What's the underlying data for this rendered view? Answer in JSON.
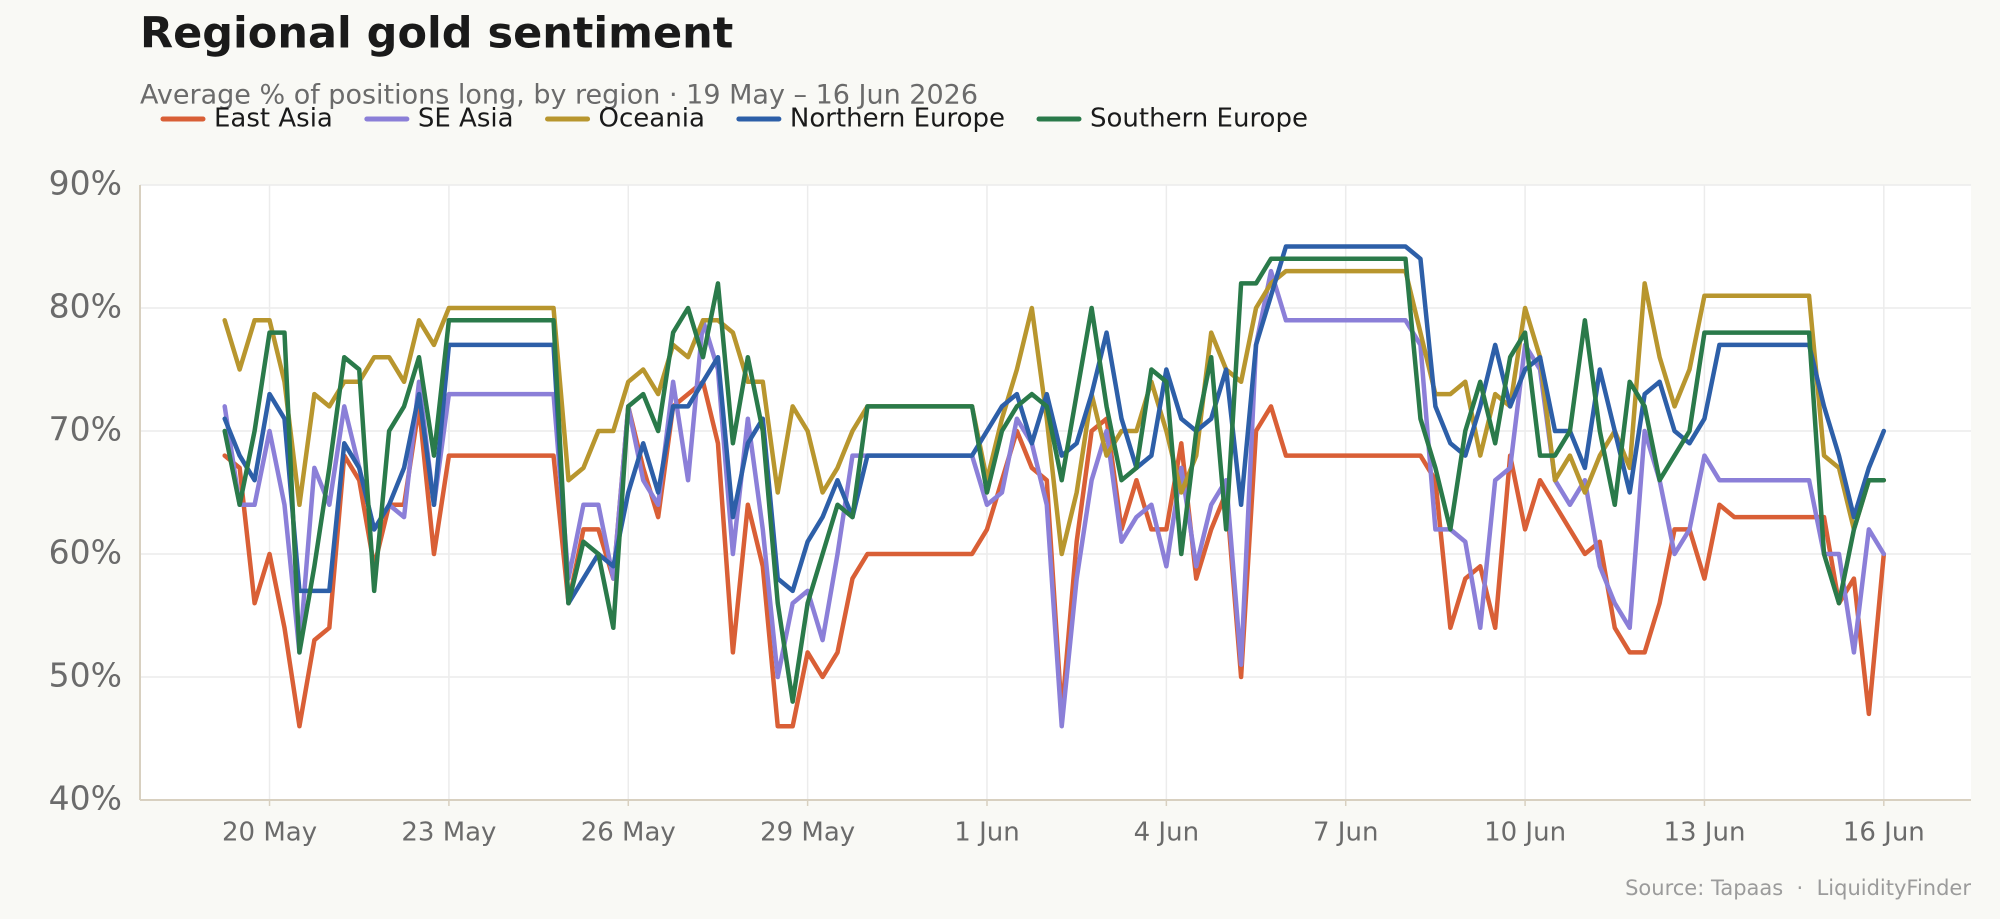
{
  "chart_data": {
    "type": "line",
    "title": "Regional gold sentiment",
    "subtitle": "Average % of positions long, by region · 19 May – 16 Jun 2026",
    "source": "Source: Tapaas  ·  LiquidityFinder",
    "legend": "top-left",
    "grid": true,
    "x": [
      "2026-05-19T06:00",
      "2026-05-19T12:00",
      "2026-05-19T18:00",
      "2026-05-20T00:00",
      "2026-05-20T06:00",
      "2026-05-20T12:00",
      "2026-05-20T18:00",
      "2026-05-21T00:00",
      "2026-05-21T06:00",
      "2026-05-21T12:00",
      "2026-05-21T18:00",
      "2026-05-22T00:00",
      "2026-05-22T06:00",
      "2026-05-22T12:00",
      "2026-05-22T18:00",
      "2026-05-23T00:00",
      "2026-05-23T06:00",
      "2026-05-23T12:00",
      "2026-05-23T18:00",
      "2026-05-24T00:00",
      "2026-05-24T06:00",
      "2026-05-24T12:00",
      "2026-05-24T18:00",
      "2026-05-25T00:00",
      "2026-05-25T06:00",
      "2026-05-25T12:00",
      "2026-05-25T18:00",
      "2026-05-26T00:00",
      "2026-05-26T06:00",
      "2026-05-26T12:00",
      "2026-05-26T18:00",
      "2026-05-27T00:00",
      "2026-05-27T06:00",
      "2026-05-27T12:00",
      "2026-05-27T18:00",
      "2026-05-28T00:00",
      "2026-05-28T06:00",
      "2026-05-28T12:00",
      "2026-05-28T18:00",
      "2026-05-29T00:00",
      "2026-05-29T06:00",
      "2026-05-29T12:00",
      "2026-05-29T18:00",
      "2026-05-30T00:00",
      "2026-05-30T06:00",
      "2026-05-30T12:00",
      "2026-05-30T18:00",
      "2026-05-31T00:00",
      "2026-05-31T06:00",
      "2026-05-31T12:00",
      "2026-05-31T18:00",
      "2026-06-01T00:00",
      "2026-06-01T06:00",
      "2026-06-01T12:00",
      "2026-06-01T18:00",
      "2026-06-02T00:00",
      "2026-06-02T06:00",
      "2026-06-02T12:00",
      "2026-06-02T18:00",
      "2026-06-03T00:00",
      "2026-06-03T06:00",
      "2026-06-03T12:00",
      "2026-06-03T18:00",
      "2026-06-04T00:00",
      "2026-06-04T06:00",
      "2026-06-04T12:00",
      "2026-06-04T18:00",
      "2026-06-05T00:00",
      "2026-06-05T06:00",
      "2026-06-05T12:00",
      "2026-06-05T18:00",
      "2026-06-06T00:00",
      "2026-06-06T06:00",
      "2026-06-06T12:00",
      "2026-06-06T18:00",
      "2026-06-07T00:00",
      "2026-06-07T06:00",
      "2026-06-07T12:00",
      "2026-06-07T18:00",
      "2026-06-08T00:00",
      "2026-06-08T06:00",
      "2026-06-08T12:00",
      "2026-06-08T18:00",
      "2026-06-09T00:00",
      "2026-06-09T06:00",
      "2026-06-09T12:00",
      "2026-06-09T18:00",
      "2026-06-10T00:00",
      "2026-06-10T06:00",
      "2026-06-10T12:00",
      "2026-06-10T18:00",
      "2026-06-11T00:00",
      "2026-06-11T06:00",
      "2026-06-11T12:00",
      "2026-06-11T18:00",
      "2026-06-12T00:00",
      "2026-06-12T06:00",
      "2026-06-12T12:00",
      "2026-06-12T18:00",
      "2026-06-13T00:00",
      "2026-06-13T06:00",
      "2026-06-13T12:00",
      "2026-06-13T18:00",
      "2026-06-14T00:00",
      "2026-06-14T06:00",
      "2026-06-14T12:00",
      "2026-06-14T18:00",
      "2026-06-15T00:00",
      "2026-06-15T06:00",
      "2026-06-15T12:00",
      "2026-06-15T18:00",
      "2026-06-16T00:00"
    ],
    "xlim": [
      "2026-05-17T20:00",
      "2026-06-17T11:00"
    ],
    "xticks": [
      {
        "value": "2026-05-20T00:00",
        "label": "20 May"
      },
      {
        "value": "2026-05-23T00:00",
        "label": "23 May"
      },
      {
        "value": "2026-05-26T00:00",
        "label": "26 May"
      },
      {
        "value": "2026-05-29T00:00",
        "label": "29 May"
      },
      {
        "value": "2026-06-01T00:00",
        "label": "1 Jun"
      },
      {
        "value": "2026-06-04T00:00",
        "label": "4 Jun"
      },
      {
        "value": "2026-06-07T00:00",
        "label": "7 Jun"
      },
      {
        "value": "2026-06-10T00:00",
        "label": "10 Jun"
      },
      {
        "value": "2026-06-13T00:00",
        "label": "13 Jun"
      },
      {
        "value": "2026-06-16T00:00",
        "label": "16 Jun"
      }
    ],
    "ylim": [
      40,
      90
    ],
    "yticks": [
      {
        "value": 40,
        "label": "40%"
      },
      {
        "value": 50,
        "label": "50%"
      },
      {
        "value": 60,
        "label": "60%"
      },
      {
        "value": 70,
        "label": "70%"
      },
      {
        "value": 80,
        "label": "80%"
      },
      {
        "value": 90,
        "label": "90%"
      }
    ],
    "series": [
      {
        "name": "East Asia",
        "color": "#d95f36",
        "values": [
          68,
          67,
          56,
          60,
          54,
          46,
          53,
          54,
          68,
          66,
          59,
          64,
          64,
          72,
          60,
          68,
          68,
          68,
          68,
          68,
          68,
          68,
          68,
          56,
          62,
          62,
          58,
          72,
          67,
          63,
          72,
          73,
          74,
          69,
          52,
          64,
          59,
          46,
          46,
          52,
          50,
          52,
          58,
          60,
          60,
          60,
          60,
          60,
          60,
          60,
          60,
          62,
          66,
          70,
          67,
          66,
          47,
          61,
          70,
          71,
          62,
          66,
          62,
          62,
          69,
          58,
          62,
          65,
          50,
          70,
          72,
          68,
          68,
          68,
          68,
          68,
          68,
          68,
          68,
          68,
          68,
          66,
          54,
          58,
          59,
          54,
          68,
          62,
          66,
          64,
          62,
          60,
          61,
          54,
          52,
          52,
          56,
          62,
          62,
          58,
          64,
          63,
          63,
          63,
          63,
          63,
          63,
          63,
          56,
          58,
          47,
          60
        ]
      },
      {
        "name": "SE Asia",
        "color": "#8b7fd8",
        "values": [
          72,
          64,
          64,
          70,
          64,
          52,
          67,
          64,
          72,
          67,
          62,
          64,
          63,
          74,
          64,
          73,
          73,
          73,
          73,
          73,
          73,
          73,
          73,
          58,
          64,
          64,
          58,
          72,
          66,
          64,
          74,
          66,
          79,
          75,
          60,
          71,
          62,
          50,
          56,
          57,
          53,
          60,
          68,
          68,
          68,
          68,
          68,
          68,
          68,
          68,
          68,
          64,
          65,
          71,
          69,
          64,
          46,
          58,
          66,
          70,
          61,
          63,
          64,
          59,
          67,
          59,
          64,
          66,
          51,
          77,
          83,
          79,
          79,
          79,
          79,
          79,
          79,
          79,
          79,
          79,
          77,
          62,
          62,
          61,
          54,
          66,
          67,
          77,
          75,
          66,
          64,
          66,
          59,
          56,
          54,
          70,
          66,
          60,
          62,
          68,
          66,
          66,
          66,
          66,
          66,
          66,
          66,
          60,
          60,
          52,
          62,
          60
        ]
      },
      {
        "name": "Oceania",
        "color": "#b8962e",
        "values": [
          79,
          75,
          79,
          79,
          74,
          64,
          73,
          72,
          74,
          74,
          76,
          76,
          74,
          79,
          77,
          80,
          80,
          80,
          80,
          80,
          80,
          80,
          80,
          66,
          67,
          70,
          70,
          74,
          75,
          73,
          77,
          76,
          79,
          79,
          78,
          74,
          74,
          65,
          72,
          70,
          65,
          67,
          70,
          72,
          72,
          72,
          72,
          72,
          72,
          72,
          72,
          66,
          71,
          75,
          80,
          71,
          60,
          65,
          73,
          68,
          70,
          70,
          74,
          70,
          65,
          68,
          78,
          75,
          74,
          80,
          82,
          83,
          83,
          83,
          83,
          83,
          83,
          83,
          83,
          83,
          78,
          73,
          73,
          74,
          68,
          73,
          72,
          80,
          76,
          66,
          68,
          65,
          68,
          70,
          67,
          82,
          76,
          72,
          75,
          81,
          81,
          81,
          81,
          81,
          81,
          81,
          81,
          68,
          67,
          62,
          66,
          66
        ]
      },
      {
        "name": "Northern Europe",
        "color": "#2d5fa8",
        "values": [
          71,
          68,
          66,
          73,
          71,
          57,
          57,
          57,
          69,
          67,
          62,
          64,
          67,
          73,
          64,
          77,
          77,
          77,
          77,
          77,
          77,
          77,
          77,
          56,
          58,
          60,
          59,
          65,
          69,
          65,
          72,
          72,
          74,
          76,
          63,
          69,
          71,
          58,
          57,
          61,
          63,
          66,
          63,
          68,
          68,
          68,
          68,
          68,
          68,
          68,
          68,
          70,
          72,
          73,
          69,
          73,
          68,
          69,
          73,
          78,
          71,
          67,
          68,
          75,
          71,
          70,
          71,
          75,
          64,
          77,
          81,
          85,
          85,
          85,
          85,
          85,
          85,
          85,
          85,
          85,
          84,
          72,
          69,
          68,
          72,
          77,
          72,
          75,
          76,
          70,
          70,
          67,
          75,
          70,
          65,
          73,
          74,
          70,
          69,
          71,
          77,
          77,
          77,
          77,
          77,
          77,
          77,
          72,
          68,
          63,
          67,
          70
        ]
      },
      {
        "name": "Southern Europe",
        "color": "#2a7a4a",
        "values": [
          70,
          64,
          70,
          78,
          78,
          52,
          59,
          67,
          76,
          75,
          57,
          70,
          72,
          76,
          68,
          79,
          79,
          79,
          79,
          79,
          79,
          79,
          79,
          56,
          61,
          60,
          54,
          72,
          73,
          70,
          78,
          80,
          76,
          82,
          69,
          76,
          70,
          56,
          48,
          56,
          60,
          64,
          63,
          72,
          72,
          72,
          72,
          72,
          72,
          72,
          72,
          65,
          70,
          72,
          73,
          72,
          66,
          73,
          80,
          72,
          66,
          67,
          75,
          74,
          60,
          70,
          76,
          62,
          82,
          82,
          84,
          84,
          84,
          84,
          84,
          84,
          84,
          84,
          84,
          84,
          71,
          67,
          62,
          70,
          74,
          69,
          76,
          78,
          68,
          68,
          70,
          79,
          70,
          64,
          74,
          72,
          66,
          68,
          70,
          78,
          78,
          78,
          78,
          78,
          78,
          78,
          78,
          60,
          56,
          62,
          66,
          66
        ]
      }
    ]
  }
}
